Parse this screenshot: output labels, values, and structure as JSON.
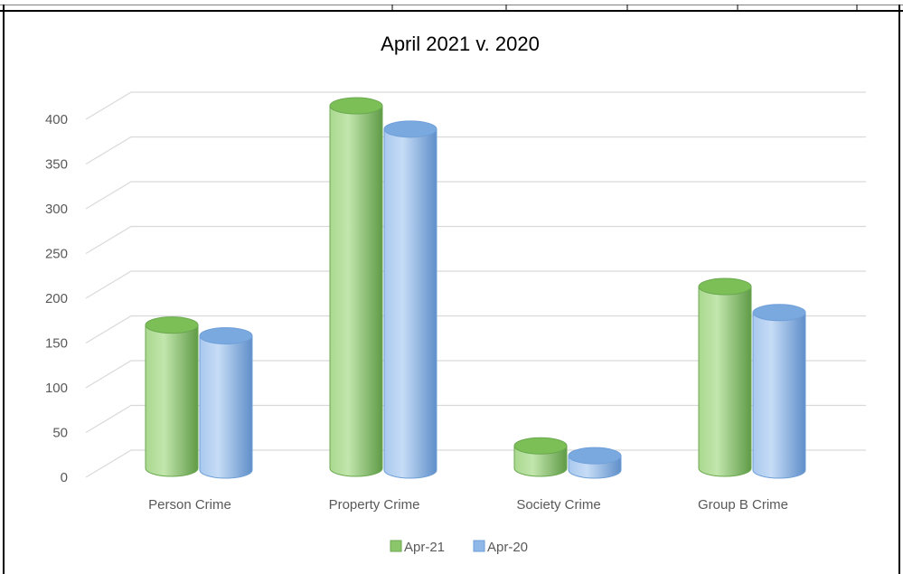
{
  "chart_data": {
    "type": "bar",
    "title": "April 2021 v. 2020",
    "categories": [
      "Person Crime",
      "Property Crime",
      "Society Crime",
      "Group B Crime"
    ],
    "series": [
      {
        "name": "Apr-21",
        "values": [
          160,
          405,
          25,
          203
        ],
        "color": "#8cc66b"
      },
      {
        "name": "Apr-20",
        "values": [
          152,
          383,
          18,
          178
        ],
        "color": "#8fb8e8"
      }
    ],
    "yticks": [
      "0",
      "50",
      "100",
      "150",
      "200",
      "250",
      "300",
      "350",
      "400"
    ],
    "ylim": [
      0,
      400
    ],
    "grid": true,
    "legend": "bottom",
    "style": "3d-cylinder"
  }
}
